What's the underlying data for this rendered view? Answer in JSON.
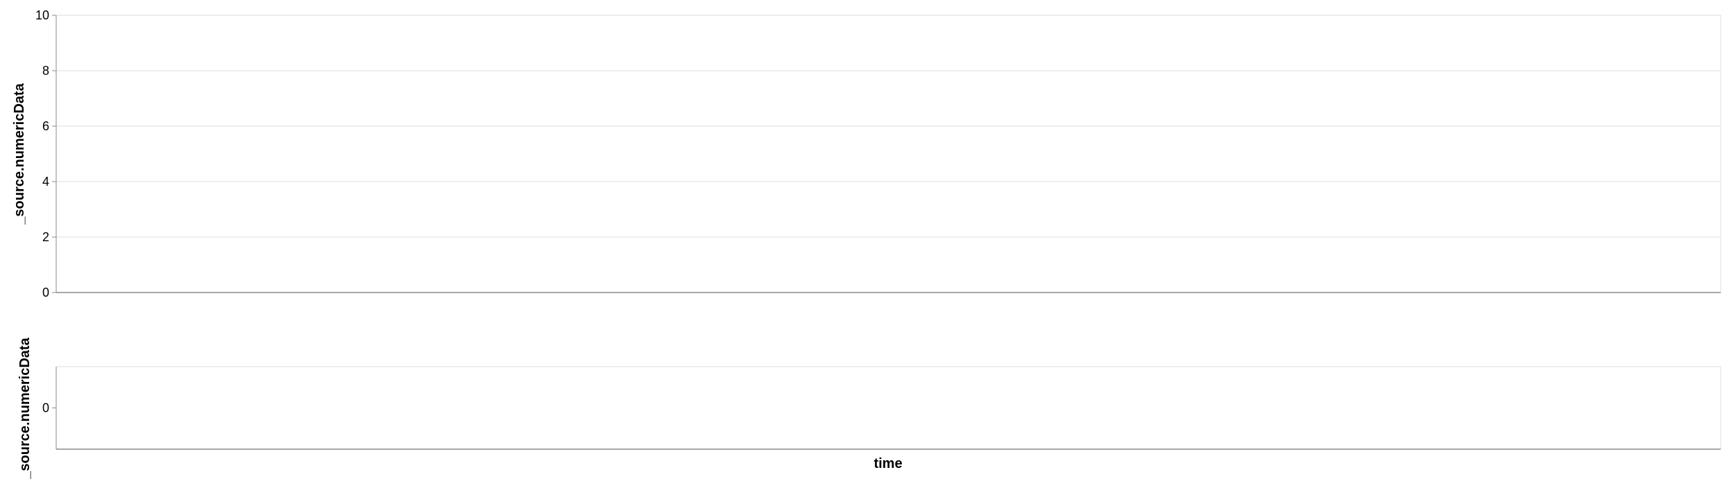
{
  "chart_data": [
    {
      "type": "line",
      "title": "",
      "xlabel": "",
      "ylabel": "_source.numericData",
      "ylim": [
        0,
        10
      ],
      "yticks": [
        "0",
        "2",
        "4",
        "6",
        "8",
        "10"
      ],
      "grid": true,
      "series": []
    },
    {
      "type": "line",
      "title": "",
      "xlabel": "time",
      "ylabel": "_source.numericData",
      "yticks": [
        "0"
      ],
      "grid": false,
      "series": []
    }
  ],
  "colors": {
    "gridline": "#dddddd",
    "axis": "#888888",
    "border": "#dddddd"
  }
}
